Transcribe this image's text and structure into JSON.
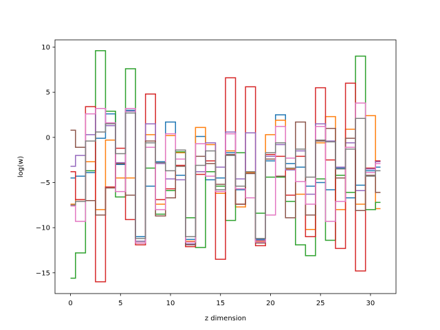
{
  "chart_data": {
    "type": "line",
    "step": "mid",
    "title": "",
    "xlabel": "z dimension",
    "ylabel": "log(w)",
    "xlim": [
      -1.55,
      32.55
    ],
    "ylim": [
      -17.3,
      10.8
    ],
    "xticks": [
      0,
      5,
      10,
      15,
      20,
      25,
      30
    ],
    "yticks": [
      -15,
      -10,
      -5,
      0,
      5,
      10
    ],
    "x": [
      0,
      1,
      2,
      3,
      4,
      5,
      6,
      7,
      8,
      9,
      10,
      11,
      12,
      13,
      14,
      15,
      16,
      17,
      18,
      19,
      20,
      21,
      22,
      23,
      24,
      25,
      26,
      27,
      28,
      29,
      30,
      31
    ],
    "series": [
      {
        "color": "#1f77b4",
        "values": [
          -4.5,
          -4.3,
          -3.9,
          -0.1,
          2.6,
          -3.0,
          3.0,
          -11.0,
          -5.4,
          -2.7,
          1.7,
          -4.2,
          -11.3,
          0.1,
          -4.7,
          -4.5,
          -1.7,
          -5.8,
          -4.0,
          -11.3,
          -2.6,
          2.5,
          -2.9,
          -3.3,
          -5.4,
          -5.0,
          -5.8,
          -3.4,
          -6.7,
          -5.3,
          -3.7,
          -3.3
        ]
      },
      {
        "color": "#ff7f0e",
        "values": [
          -7.4,
          -6.9,
          -2.7,
          -8.0,
          -0.3,
          -4.5,
          -4.5,
          -11.5,
          0.3,
          -7.4,
          0.2,
          -1.7,
          -11.5,
          1.1,
          -0.8,
          -6.2,
          -1.5,
          -7.7,
          -3.9,
          -11.5,
          0.3,
          1.9,
          -3.5,
          -6.3,
          -10.2,
          -0.6,
          2.3,
          -8.0,
          0.9,
          -7.4,
          2.4,
          -7.9
        ]
      },
      {
        "color": "#2ca02c",
        "values": [
          -15.6,
          -12.8,
          -3.7,
          9.6,
          2.9,
          -6.6,
          7.6,
          -11.5,
          -3.4,
          -8.5,
          -5.9,
          -1.6,
          -8.9,
          -12.2,
          -3.8,
          -5.4,
          -9.2,
          -1.7,
          -6.7,
          -8.4,
          -4.4,
          -4.4,
          -7.1,
          -11.9,
          -13.1,
          -4.6,
          -11.4,
          -4.2,
          -6.1,
          9.0,
          -8.0,
          -7.2
        ]
      },
      {
        "color": "#d62728",
        "values": [
          -3.8,
          -6.9,
          3.4,
          -16.0,
          -5.5,
          -1.2,
          -9.1,
          -11.9,
          4.8,
          -6.9,
          -5.7,
          -3.1,
          -12.1,
          -4.1,
          -2.6,
          -13.5,
          6.6,
          -7.4,
          5.6,
          -12.0,
          -1.9,
          -2.1,
          -6.4,
          -2.1,
          -11.0,
          5.5,
          -2.5,
          -12.3,
          6.0,
          -14.8,
          -3.4,
          -2.6
        ]
      },
      {
        "color": "#9467bd",
        "values": [
          -3.2,
          -2.0,
          0.3,
          3.2,
          1.3,
          -2.8,
          2.9,
          -11.5,
          1.5,
          -2.9,
          -4.6,
          -4.7,
          -11.8,
          -3.8,
          -0.6,
          -3.3,
          0.6,
          -4.6,
          0.5,
          -11.4,
          -2.1,
          -0.8,
          -3.6,
          -1.5,
          -6.3,
          1.5,
          -0.4,
          -3.3,
          -0.6,
          -5.9,
          -3.5,
          -2.7
        ]
      },
      {
        "color": "#8c564b",
        "values": [
          0.8,
          -1.1,
          -7.0,
          -8.6,
          -5.6,
          -2.9,
          -6.4,
          -11.7,
          -0.4,
          -8.7,
          -6.7,
          -3.2,
          -11.9,
          -2.1,
          -2.9,
          -5.2,
          -1.9,
          -7.4,
          -4.0,
          -11.7,
          -2.4,
          -4.3,
          -8.9,
          1.7,
          -8.6,
          -0.4,
          1.0,
          -4.5,
          -0.1,
          -8.1,
          -4.2,
          -6.1
        ]
      },
      {
        "color": "#e377c2",
        "values": [
          -7.6,
          -9.3,
          2.6,
          3.2,
          1.6,
          -6.0,
          3.2,
          -11.7,
          -1.1,
          -8.0,
          0.4,
          -2.4,
          -11.6,
          -0.7,
          -4.3,
          -6.0,
          0.4,
          -5.7,
          -6.7,
          -11.6,
          -8.6,
          1.2,
          -2.3,
          -4.9,
          -7.4,
          1.2,
          -9.3,
          -7.1,
          -1.1,
          3.8,
          -3.9,
          -2.9
        ]
      },
      {
        "color": "#7f7f7f",
        "values": [
          -7.5,
          -7.1,
          -0.4,
          0.6,
          1.5,
          -1.8,
          2.7,
          -11.2,
          -0.6,
          -2.8,
          -3.7,
          -1.4,
          -11.0,
          -3.1,
          -1.5,
          -5.8,
          -2.0,
          -5.4,
          -3.8,
          -11.2,
          -1.7,
          -0.6,
          -3.4,
          -1.3,
          -4.4,
          -0.3,
          -0.5,
          -3.5,
          -1.3,
          2.1,
          -4.3,
          -3.7
        ]
      }
    ]
  }
}
